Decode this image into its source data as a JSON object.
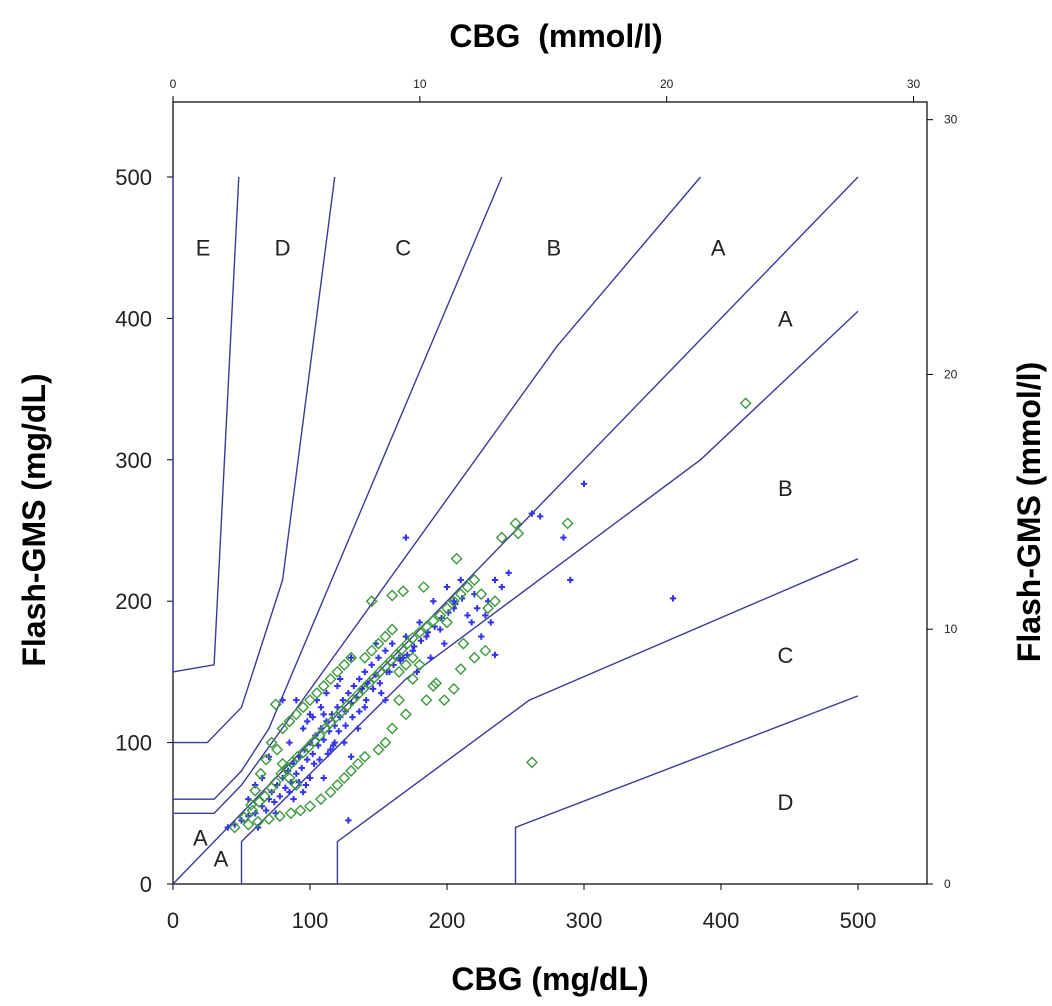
{
  "chart_data": {
    "type": "scatter",
    "title": "",
    "xlabel": "CBG (mg/dL)",
    "ylabel": "Flash-GMS (mg/dL)",
    "x2label": "CBG  (mmol/l)",
    "y2label": "Flash-GMS (mmol/l)",
    "xlim": [
      0,
      550
    ],
    "ylim": [
      0,
      550
    ],
    "x2lim": [
      0,
      30
    ],
    "y2lim": [
      0,
      30
    ],
    "x_ticks": [
      "0",
      "100",
      "200",
      "300",
      "400",
      "500"
    ],
    "y_ticks": [
      "0",
      "100",
      "200",
      "300",
      "400",
      "500"
    ],
    "x2_ticks": [
      "0",
      "10",
      "20",
      "30"
    ],
    "y2_ticks": [
      "0",
      "10",
      "20",
      "30"
    ],
    "grid": false,
    "legend": "none",
    "colors": {
      "zone_lines": "#3a3a9a",
      "series_blue": "#3333ee",
      "series_green": "#3c9a3c"
    },
    "zone_lines": [
      [
        [
          0,
          500
        ],
        [
          0,
          150
        ],
        [
          30,
          155
        ],
        [
          48,
          500
        ]
      ],
      [
        [
          0,
          100
        ],
        [
          25,
          100
        ],
        [
          50,
          125
        ],
        [
          80,
          215
        ],
        [
          118,
          500
        ]
      ],
      [
        [
          0,
          60
        ],
        [
          30,
          60
        ],
        [
          50,
          80
        ],
        [
          70,
          110
        ],
        [
          240,
          500
        ]
      ],
      [
        [
          0,
          50
        ],
        [
          30,
          50
        ],
        [
          50,
          70
        ],
        [
          280,
          380
        ],
        [
          385,
          500
        ]
      ],
      [
        [
          0,
          0
        ],
        [
          500,
          500
        ]
      ],
      [
        [
          50,
          0
        ],
        [
          50,
          30
        ],
        [
          170,
          145
        ],
        [
          385,
          300
        ],
        [
          500,
          405
        ]
      ],
      [
        [
          120,
          0
        ],
        [
          120,
          30
        ],
        [
          260,
          130
        ],
        [
          500,
          230
        ]
      ],
      [
        [
          250,
          0
        ],
        [
          250,
          40
        ],
        [
          500,
          133
        ]
      ]
    ],
    "zone_labels": [
      {
        "text": "E",
        "x": 22,
        "y": 450
      },
      {
        "text": "D",
        "x": 80,
        "y": 450
      },
      {
        "text": "C",
        "x": 168,
        "y": 450
      },
      {
        "text": "B",
        "x": 278,
        "y": 450
      },
      {
        "text": "A",
        "x": 398,
        "y": 450
      },
      {
        "text": "A",
        "x": 447,
        "y": 400
      },
      {
        "text": "B",
        "x": 447,
        "y": 280
      },
      {
        "text": "C",
        "x": 447,
        "y": 162
      },
      {
        "text": "D",
        "x": 447,
        "y": 58
      },
      {
        "text": "A",
        "x": 20,
        "y": 33
      },
      {
        "text": "A",
        "x": 35,
        "y": 18
      }
    ],
    "series": [
      {
        "marker": "cross",
        "points": [
          [
            40,
            40
          ],
          [
            45,
            42
          ],
          [
            50,
            45
          ],
          [
            55,
            48
          ],
          [
            60,
            50
          ],
          [
            62,
            40
          ],
          [
            65,
            55
          ],
          [
            68,
            52
          ],
          [
            70,
            60
          ],
          [
            72,
            65
          ],
          [
            74,
            58
          ],
          [
            76,
            70
          ],
          [
            78,
            62
          ],
          [
            80,
            75
          ],
          [
            82,
            68
          ],
          [
            84,
            80
          ],
          [
            86,
            72
          ],
          [
            88,
            85
          ],
          [
            90,
            78
          ],
          [
            92,
            90
          ],
          [
            94,
            82
          ],
          [
            96,
            95
          ],
          [
            98,
            88
          ],
          [
            100,
            100
          ],
          [
            102,
            92
          ],
          [
            104,
            105
          ],
          [
            106,
            98
          ],
          [
            108,
            110
          ],
          [
            110,
            102
          ],
          [
            112,
            115
          ],
          [
            114,
            108
          ],
          [
            116,
            120
          ],
          [
            118,
            112
          ],
          [
            120,
            125
          ],
          [
            122,
            118
          ],
          [
            124,
            130
          ],
          [
            126,
            122
          ],
          [
            128,
            135
          ],
          [
            130,
            128
          ],
          [
            132,
            140
          ],
          [
            134,
            132
          ],
          [
            136,
            145
          ],
          [
            138,
            138
          ],
          [
            140,
            150
          ],
          [
            142,
            142
          ],
          [
            145,
            155
          ],
          [
            148,
            148
          ],
          [
            150,
            160
          ],
          [
            152,
            135
          ],
          [
            155,
            165
          ],
          [
            158,
            150
          ],
          [
            160,
            170
          ],
          [
            165,
            160
          ],
          [
            170,
            175
          ],
          [
            175,
            165
          ],
          [
            180,
            185
          ],
          [
            185,
            175
          ],
          [
            190,
            200
          ],
          [
            195,
            180
          ],
          [
            200,
            210
          ],
          [
            205,
            195
          ],
          [
            210,
            215
          ],
          [
            215,
            190
          ],
          [
            220,
            205
          ],
          [
            230,
            200
          ],
          [
            235,
            215
          ],
          [
            240,
            210
          ],
          [
            245,
            220
          ],
          [
            90,
            130
          ],
          [
            95,
            110
          ],
          [
            100,
            75
          ],
          [
            85,
            100
          ],
          [
            80,
            130
          ],
          [
            105,
            130
          ],
          [
            110,
            75
          ],
          [
            70,
            90
          ],
          [
            60,
            70
          ],
          [
            120,
            140
          ],
          [
            125,
            100
          ],
          [
            130,
            90
          ],
          [
            135,
            110
          ],
          [
            115,
            95
          ],
          [
            95,
            65
          ],
          [
            88,
            60
          ],
          [
            75,
            50
          ],
          [
            100,
            120
          ],
          [
            108,
            125
          ],
          [
            112,
            135
          ],
          [
            118,
            100
          ],
          [
            122,
            145
          ],
          [
            130,
            160
          ],
          [
            140,
            125
          ],
          [
            148,
            170
          ],
          [
            155,
            130
          ],
          [
            170,
            245
          ],
          [
            168,
            160
          ],
          [
            178,
            150
          ],
          [
            188,
            160
          ],
          [
            198,
            170
          ],
          [
            205,
            200
          ],
          [
            218,
            185
          ],
          [
            225,
            175
          ],
          [
            235,
            162
          ],
          [
            262,
            262
          ],
          [
            268,
            260
          ],
          [
            285,
            245
          ],
          [
            290,
            215
          ],
          [
            300,
            283
          ],
          [
            365,
            202
          ],
          [
            128,
            45
          ],
          [
            55,
            60
          ],
          [
            65,
            75
          ],
          [
            85,
            65
          ],
          [
            92,
            72
          ],
          [
            97,
            70
          ],
          [
            103,
            85
          ],
          [
            107,
            88
          ],
          [
            113,
            92
          ],
          [
            117,
            98
          ],
          [
            98,
            115
          ],
          [
            102,
            118
          ],
          [
            110,
            120
          ],
          [
            121,
            108
          ],
          [
            126,
            112
          ],
          [
            131,
            118
          ],
          [
            136,
            122
          ],
          [
            141,
            130
          ],
          [
            146,
            138
          ],
          [
            151,
            142
          ],
          [
            156,
            150
          ],
          [
            161,
            155
          ],
          [
            166,
            158
          ],
          [
            171,
            162
          ],
          [
            176,
            168
          ],
          [
            181,
            172
          ],
          [
            186,
            178
          ],
          [
            191,
            182
          ],
          [
            196,
            188
          ],
          [
            201,
            192
          ],
          [
            206,
            198
          ],
          [
            211,
            202
          ],
          [
            222,
            195
          ],
          [
            228,
            190
          ],
          [
            232,
            185
          ]
        ]
      },
      {
        "marker": "diamond",
        "points": [
          [
            45,
            40
          ],
          [
            52,
            47
          ],
          [
            58,
            52
          ],
          [
            63,
            58
          ],
          [
            67,
            62
          ],
          [
            72,
            68
          ],
          [
            75,
            72
          ],
          [
            79,
            78
          ],
          [
            83,
            82
          ],
          [
            87,
            86
          ],
          [
            91,
            90
          ],
          [
            95,
            93
          ],
          [
            99,
            97
          ],
          [
            103,
            101
          ],
          [
            107,
            105
          ],
          [
            111,
            110
          ],
          [
            115,
            114
          ],
          [
            119,
            118
          ],
          [
            123,
            122
          ],
          [
            127,
            126
          ],
          [
            131,
            130
          ],
          [
            135,
            134
          ],
          [
            139,
            138
          ],
          [
            143,
            142
          ],
          [
            147,
            146
          ],
          [
            151,
            150
          ],
          [
            155,
            154
          ],
          [
            159,
            158
          ],
          [
            163,
            162
          ],
          [
            167,
            166
          ],
          [
            171,
            170
          ],
          [
            175,
            174
          ],
          [
            180,
            178
          ],
          [
            185,
            182
          ],
          [
            190,
            186
          ],
          [
            195,
            190
          ],
          [
            200,
            195
          ],
          [
            205,
            200
          ],
          [
            210,
            205
          ],
          [
            215,
            210
          ],
          [
            220,
            215
          ],
          [
            225,
            205
          ],
          [
            230,
            195
          ],
          [
            235,
            200
          ],
          [
            240,
            245
          ],
          [
            250,
            255
          ],
          [
            252,
            248
          ],
          [
            288,
            255
          ],
          [
            418,
            340
          ],
          [
            262,
            86
          ],
          [
            168,
            207
          ],
          [
            160,
            204
          ],
          [
            145,
            200
          ],
          [
            207,
            230
          ],
          [
            183,
            210
          ],
          [
            200,
            185
          ],
          [
            212,
            170
          ],
          [
            190,
            140
          ],
          [
            185,
            130
          ],
          [
            175,
            145
          ],
          [
            180,
            155
          ],
          [
            165,
            130
          ],
          [
            170,
            120
          ],
          [
            160,
            110
          ],
          [
            155,
            100
          ],
          [
            150,
            95
          ],
          [
            140,
            90
          ],
          [
            135,
            85
          ],
          [
            130,
            80
          ],
          [
            125,
            75
          ],
          [
            120,
            70
          ],
          [
            115,
            65
          ],
          [
            108,
            60
          ],
          [
            100,
            55
          ],
          [
            93,
            52
          ],
          [
            86,
            50
          ],
          [
            78,
            48
          ],
          [
            70,
            46
          ],
          [
            62,
            44
          ],
          [
            55,
            42
          ],
          [
            75,
            127
          ],
          [
            80,
            110
          ],
          [
            85,
            115
          ],
          [
            90,
            120
          ],
          [
            95,
            125
          ],
          [
            100,
            130
          ],
          [
            105,
            135
          ],
          [
            110,
            140
          ],
          [
            115,
            145
          ],
          [
            120,
            150
          ],
          [
            125,
            155
          ],
          [
            130,
            160
          ],
          [
            90,
            70
          ],
          [
            85,
            75
          ],
          [
            80,
            85
          ],
          [
            76,
            95
          ],
          [
            72,
            100
          ],
          [
            68,
            88
          ],
          [
            64,
            78
          ],
          [
            60,
            66
          ],
          [
            57,
            56
          ],
          [
            140,
            160
          ],
          [
            145,
            165
          ],
          [
            150,
            170
          ],
          [
            155,
            175
          ],
          [
            160,
            180
          ],
          [
            165,
            150
          ],
          [
            170,
            155
          ],
          [
            175,
            160
          ],
          [
            192,
            142
          ],
          [
            198,
            130
          ],
          [
            205,
            138
          ],
          [
            210,
            152
          ],
          [
            220,
            160
          ],
          [
            228,
            165
          ]
        ]
      }
    ]
  }
}
